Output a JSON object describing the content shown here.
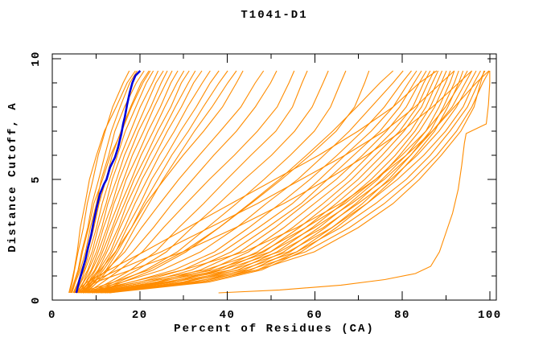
{
  "chart_data": {
    "type": "line",
    "title": "T1041-D1",
    "xlabel": "Percent of Residues (CA)",
    "ylabel": "Distance Cutoff, A",
    "xlim": [
      0,
      101.5
    ],
    "ylim": [
      0,
      10.2
    ],
    "x_ticks_major": [
      0,
      20,
      40,
      60,
      80,
      100
    ],
    "x_ticks_minor": [
      10,
      30,
      50,
      70,
      90
    ],
    "y_ticks_major": [
      0,
      5,
      10
    ],
    "y_ticks_minor": [
      1,
      2,
      3,
      4,
      6,
      7,
      8,
      9
    ],
    "grid": false,
    "legend": "none",
    "colors": {
      "model": "#FF8C00",
      "highlight": "#0000DC",
      "frame": "#000000"
    },
    "y_levels": [
      0.3,
      0.75,
      1.25,
      2,
      3,
      4,
      5,
      6,
      7,
      8,
      9,
      9.5
    ],
    "model_curves_x": [
      [
        4.0,
        4.6,
        5.1,
        5.9,
        7.1,
        8.0,
        9.3,
        10.5,
        12.1,
        13.8,
        16.2,
        17.6
      ],
      [
        4.2,
        5.0,
        5.9,
        6.7,
        8.1,
        9.1,
        10.6,
        12.0,
        13.5,
        15.5,
        17.7,
        19.4
      ],
      [
        4.5,
        5.3,
        6.4,
        7.6,
        8.7,
        10.1,
        11.2,
        12.9,
        14.3,
        16.5,
        19.2,
        21.0
      ],
      [
        4.8,
        5.9,
        6.7,
        8.1,
        9.5,
        10.7,
        12.3,
        13.7,
        15.7,
        17.9,
        20.3,
        22.1
      ],
      [
        5.0,
        6.0,
        7.3,
        8.5,
        10.1,
        11.4,
        13.1,
        14.9,
        16.7,
        19.1,
        21.5,
        23.1
      ],
      [
        5.2,
        6.5,
        7.5,
        9.1,
        10.5,
        12.3,
        13.7,
        15.7,
        17.9,
        20.1,
        22.9,
        24.2
      ],
      [
        5.4,
        6.6,
        8.1,
        9.5,
        11.3,
        12.7,
        14.7,
        16.5,
        18.9,
        21.3,
        23.7,
        25.4
      ],
      [
        5.6,
        7.1,
        8.3,
        10.1,
        11.7,
        13.7,
        15.3,
        17.5,
        19.7,
        22.5,
        24.9,
        26.3
      ],
      [
        5.8,
        7.2,
        8.9,
        10.5,
        12.5,
        14.1,
        16.3,
        18.3,
        20.9,
        23.3,
        26.0,
        27.4
      ],
      [
        6.0,
        7.7,
        9.1,
        11.1,
        12.9,
        15.1,
        16.9,
        19.5,
        21.9,
        24.7,
        27.1,
        28.7
      ],
      [
        6.2,
        7.8,
        9.7,
        11.5,
        13.7,
        15.7,
        18.1,
        20.3,
        23.1,
        25.7,
        28.5,
        30.1
      ],
      [
        6.4,
        8.3,
        9.9,
        12.1,
        14.1,
        16.5,
        18.7,
        21.5,
        24.1,
        27.1,
        29.5,
        31.3
      ],
      [
        6.6,
        8.4,
        10.5,
        12.5,
        15.1,
        17.1,
        19.7,
        22.3,
        25.3,
        28.1,
        31.1,
        32.7
      ],
      [
        6.8,
        8.9,
        10.7,
        13.3,
        15.5,
        18.1,
        20.5,
        23.5,
        26.3,
        29.5,
        32.3,
        34.2
      ],
      [
        7.0,
        9.1,
        11.3,
        13.7,
        16.5,
        18.9,
        21.7,
        24.5,
        27.9,
        30.9,
        34.3,
        36.1
      ],
      [
        7.2,
        9.5,
        11.7,
        14.5,
        17.1,
        20.1,
        22.7,
        26.1,
        29.3,
        32.9,
        36.1,
        38.1
      ],
      [
        7.5,
        9.7,
        12.3,
        14.9,
        18.1,
        20.9,
        24.1,
        27.3,
        31.1,
        34.5,
        38.1,
        40.1
      ],
      [
        7.8,
        10.3,
        12.7,
        15.9,
        18.9,
        22.1,
        25.3,
        28.9,
        32.5,
        36.5,
        40.1,
        42.1
      ],
      [
        3.8,
        4.4,
        5.0,
        5.7,
        6.4,
        7.5,
        8.5,
        10.1,
        11.9,
        14.6,
        17.1,
        19.0
      ],
      [
        4.4,
        5.1,
        6.1,
        6.9,
        8.3,
        9.5,
        11.5,
        13.3,
        15.9,
        18.1,
        20.7,
        22.4
      ],
      [
        6.5,
        8.5,
        11.0,
        14.4,
        18.1,
        21.4,
        25.6,
        29.9,
        34.6,
        38.9,
        42.1,
        43.6
      ],
      [
        7.0,
        9.6,
        12.4,
        16.6,
        20.4,
        24.6,
        28.9,
        33.6,
        38.4,
        43.1,
        46.4,
        48.3
      ],
      [
        7.5,
        10.4,
        14.1,
        18.4,
        23.1,
        27.4,
        32.1,
        36.9,
        42.1,
        46.4,
        49.9,
        51.3
      ],
      [
        8.0,
        11.6,
        15.4,
        20.6,
        25.4,
        30.6,
        35.9,
        41.6,
        46.9,
        51.4,
        54.1,
        55.3
      ],
      [
        8.5,
        13.1,
        17.9,
        23.6,
        28.9,
        34.6,
        39.9,
        45.4,
        51.1,
        54.9,
        57.1,
        58.3
      ],
      [
        9.0,
        14.1,
        19.4,
        26.1,
        31.9,
        38.1,
        43.9,
        50.1,
        55.4,
        59.4,
        61.9,
        63.1
      ],
      [
        9.5,
        15.1,
        21.4,
        28.6,
        35.4,
        42.1,
        48.4,
        54.4,
        59.9,
        63.6,
        65.9,
        67.1
      ],
      [
        10.0,
        16.1,
        23.1,
        30.6,
        38.1,
        45.4,
        52.4,
        58.9,
        64.9,
        69.1,
        71.4,
        72.4
      ],
      [
        6.0,
        14.1,
        22.1,
        29.9,
        38.1,
        45.1,
        51.9,
        58.1,
        64.1,
        69.6,
        74.9,
        77.9
      ],
      [
        6.5,
        16.1,
        25.1,
        33.9,
        42.1,
        48.9,
        56.1,
        62.1,
        67.9,
        72.9,
        77.9,
        80.2
      ],
      [
        7.0,
        18.1,
        27.9,
        37.1,
        44.9,
        52.1,
        58.9,
        65.1,
        70.9,
        75.9,
        79.9,
        82.1
      ],
      [
        7.5,
        20.1,
        29.9,
        38.9,
        47.1,
        54.9,
        61.1,
        66.9,
        72.9,
        77.9,
        81.4,
        83.3
      ],
      [
        8.0,
        21.9,
        31.9,
        40.9,
        49.1,
        56.9,
        62.9,
        68.9,
        74.9,
        79.4,
        82.7,
        84.4
      ],
      [
        8.5,
        23.9,
        33.9,
        42.9,
        50.9,
        57.9,
        64.9,
        70.9,
        76.4,
        80.9,
        83.9,
        85.5
      ],
      [
        9.0,
        24.9,
        35.9,
        44.9,
        52.9,
        59.9,
        66.9,
        72.4,
        77.9,
        82.4,
        84.9,
        86.4
      ],
      [
        9.5,
        26.9,
        37.9,
        46.9,
        54.9,
        61.9,
        68.4,
        73.9,
        79.4,
        83.4,
        85.9,
        87.3
      ],
      [
        10.0,
        27.9,
        38.9,
        48.4,
        56.4,
        63.4,
        69.9,
        75.4,
        80.4,
        84.4,
        86.9,
        88.2
      ],
      [
        10.5,
        29.9,
        40.9,
        49.9,
        57.9,
        64.9,
        71.4,
        76.9,
        81.9,
        85.4,
        87.9,
        89.1
      ],
      [
        11.0,
        30.9,
        42.4,
        51.4,
        59.4,
        66.4,
        72.9,
        78.4,
        82.9,
        86.4,
        88.9,
        90.1
      ],
      [
        11.5,
        32.9,
        43.9,
        52.9,
        60.9,
        67.9,
        74.4,
        79.4,
        83.9,
        87.4,
        89.9,
        91.0
      ],
      [
        12.0,
        33.9,
        45.4,
        54.4,
        62.4,
        69.4,
        75.4,
        80.9,
        85.4,
        88.4,
        90.9,
        91.9
      ],
      [
        12.5,
        34.9,
        46.9,
        55.9,
        63.9,
        70.9,
        76.9,
        81.9,
        86.4,
        89.4,
        91.9,
        92.9
      ],
      [
        13.0,
        35.9,
        47.9,
        56.9,
        64.9,
        71.9,
        77.9,
        82.9,
        87.4,
        90.4,
        92.9,
        93.9
      ],
      [
        7.0,
        19.9,
        34.9,
        47.9,
        57.9,
        66.9,
        73.9,
        79.9,
        85.4,
        89.9,
        93.4,
        94.9
      ],
      [
        8.0,
        21.9,
        36.9,
        49.9,
        59.9,
        68.4,
        75.9,
        81.9,
        86.9,
        91.4,
        94.4,
        95.9
      ],
      [
        9.0,
        23.9,
        38.9,
        51.9,
        61.9,
        69.9,
        77.4,
        83.4,
        88.4,
        92.4,
        95.4,
        96.9
      ],
      [
        10.0,
        25.9,
        40.9,
        53.9,
        63.9,
        71.9,
        78.9,
        84.9,
        89.9,
        93.9,
        96.4,
        97.9
      ],
      [
        11.0,
        27.9,
        42.9,
        55.9,
        65.9,
        73.9,
        80.9,
        86.4,
        90.9,
        94.9,
        97.4,
        98.9
      ],
      [
        12.0,
        29.9,
        44.9,
        57.9,
        67.9,
        75.9,
        82.4,
        87.9,
        92.4,
        95.9,
        98.4,
        99.9
      ],
      [
        9.0,
        18.0,
        29.9,
        43.9,
        55.9,
        65.9,
        73.9,
        80.9,
        86.9,
        91.9,
        96.9,
        99.8
      ],
      [
        6.0,
        10.0,
        18.0,
        29.9,
        41.9,
        52.9,
        62.9,
        71.9,
        79.9,
        86.9,
        92.9,
        95.9
      ],
      [
        5.5,
        9.0,
        15.0,
        24.9,
        35.9,
        46.9,
        56.9,
        66.9,
        75.9,
        82.9,
        88.9,
        91.9
      ],
      [
        5.0,
        8.0,
        13.0,
        20.9,
        30.9,
        40.9,
        50.9,
        60.9,
        69.9,
        77.9,
        83.9,
        87.9
      ],
      [
        13.0,
        31.9,
        46.9,
        59.9,
        69.9,
        77.9,
        83.9,
        88.9,
        93.4,
        96.4,
        97.9,
        98.7
      ]
    ],
    "outlier_curve": [
      [
        38,
        0.3
      ],
      [
        52,
        0.42
      ],
      [
        66,
        0.62
      ],
      [
        76,
        0.85
      ],
      [
        83,
        1.1
      ],
      [
        86.5,
        1.4
      ],
      [
        88.5,
        2.0
      ],
      [
        90,
        2.8
      ],
      [
        91.5,
        3.6
      ],
      [
        92.8,
        4.6
      ],
      [
        93.6,
        5.6
      ],
      [
        94.2,
        6.5
      ],
      [
        94.6,
        6.9
      ],
      [
        99.2,
        7.3
      ],
      [
        99.7,
        8.1
      ],
      [
        100,
        9.0
      ],
      [
        100,
        9.5
      ]
    ],
    "highlight_curve": [
      [
        5.5,
        0.3
      ],
      [
        6.1,
        0.75
      ],
      [
        6.9,
        1.25
      ],
      [
        7.6,
        1.7
      ],
      [
        8.2,
        2.2
      ],
      [
        8.9,
        2.7
      ],
      [
        9.4,
        3.2
      ],
      [
        10.1,
        3.8
      ],
      [
        10.9,
        4.4
      ],
      [
        11.8,
        4.8
      ],
      [
        12.4,
        5.0
      ],
      [
        13.2,
        5.5
      ],
      [
        14.3,
        5.9
      ],
      [
        15.0,
        6.3
      ],
      [
        15.8,
        6.9
      ],
      [
        16.2,
        7.3
      ],
      [
        16.6,
        7.6
      ],
      [
        17.1,
        8.1
      ],
      [
        17.7,
        8.6
      ],
      [
        18.3,
        9.0
      ],
      [
        19.0,
        9.3
      ],
      [
        20.1,
        9.5
      ]
    ]
  }
}
